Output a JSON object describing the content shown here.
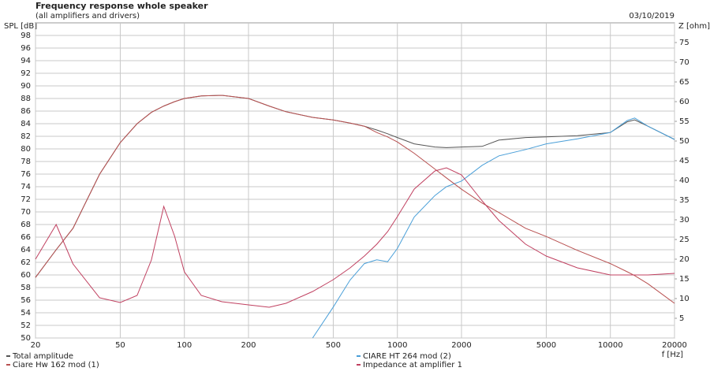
{
  "chart_data": {
    "type": "line",
    "title": "Frequency response whole speaker",
    "subtitle": "(all amplifiers and drivers)",
    "date": "03/10/2019",
    "y_label": "SPL [dB]",
    "y2_label": "Z [ohm]",
    "x_label": "f [Hz]",
    "log_x": true,
    "grid": true,
    "x": [
      20,
      25,
      30,
      40,
      50,
      60,
      70,
      80,
      90,
      100,
      120,
      150,
      200,
      250,
      300,
      400,
      500,
      600,
      700,
      800,
      900,
      1000,
      1200,
      1500,
      1700,
      2000,
      2500,
      3000,
      4000,
      5000,
      7000,
      10000,
      12000,
      13000,
      15000,
      20000
    ],
    "xlim": [
      20,
      20000
    ],
    "xticks": [
      20,
      50,
      100,
      200,
      500,
      1000,
      2000,
      5000,
      10000,
      20000
    ],
    "ylim": [
      50,
      100
    ],
    "yticks": [
      50,
      52,
      54,
      56,
      58,
      60,
      62,
      64,
      66,
      68,
      70,
      72,
      74,
      76,
      78,
      80,
      82,
      84,
      86,
      88,
      90,
      92,
      94,
      96,
      98
    ],
    "y2lim": [
      0,
      80
    ],
    "y2ticks": [
      5,
      10,
      15,
      20,
      25,
      30,
      35,
      40,
      45,
      50,
      55,
      60,
      65,
      70,
      75
    ],
    "series": [
      {
        "name": "Total amplitude",
        "color": "#555555",
        "values": [
          59.6,
          64,
          67.4,
          76,
          81,
          84,
          85.8,
          86.8,
          87.5,
          88,
          88.4,
          88.5,
          88,
          86.8,
          85.9,
          85,
          84.6,
          84.1,
          83.6,
          83,
          82.4,
          81.8,
          80.8,
          80.3,
          80.2,
          80.3,
          80.4,
          81.4,
          81.8,
          81.9,
          82.1,
          82.6,
          84.3,
          84.6,
          83.6,
          81.5
        ]
      },
      {
        "name": "CIARE HT 264 mod (2)",
        "color": "#4a9fd8",
        "values": [
          null,
          null,
          null,
          null,
          null,
          null,
          null,
          null,
          null,
          null,
          null,
          null,
          null,
          null,
          null,
          50,
          54.9,
          59.2,
          61.8,
          62.4,
          62.1,
          64.2,
          69.2,
          72.6,
          74,
          74.9,
          77.4,
          78.9,
          79.9,
          80.8,
          81.6,
          82.6,
          84.5,
          84.9,
          83.6,
          81.5
        ]
      },
      {
        "name": "Ciare Hw 162 mod (1)",
        "color": "#b85050",
        "values": [
          59.6,
          64,
          67.4,
          76,
          81,
          84,
          85.8,
          86.8,
          87.5,
          88,
          88.4,
          88.5,
          88,
          86.8,
          85.9,
          85,
          84.6,
          84.1,
          83.6,
          82.6,
          81.9,
          81.1,
          79.3,
          76.8,
          75.4,
          73.6,
          71.4,
          69.9,
          67.4,
          66.1,
          63.9,
          61.8,
          60.5,
          59.9,
          58.6,
          55.5
        ]
      },
      {
        "name": "Impedance at amplifier 1",
        "color": "#c04060",
        "axis": "y2",
        "values": [
          20,
          28.8,
          18.8,
          10.2,
          9,
          10.8,
          19.8,
          33.4,
          25.8,
          16.8,
          10.8,
          9.2,
          8.4,
          7.8,
          8.8,
          11.8,
          14.8,
          17.8,
          20.8,
          23.8,
          27,
          30.8,
          37.8,
          42.4,
          43.2,
          41.4,
          34.8,
          29.8,
          23.8,
          20.8,
          17.8,
          16,
          16,
          16,
          16,
          16.4
        ]
      }
    ]
  }
}
